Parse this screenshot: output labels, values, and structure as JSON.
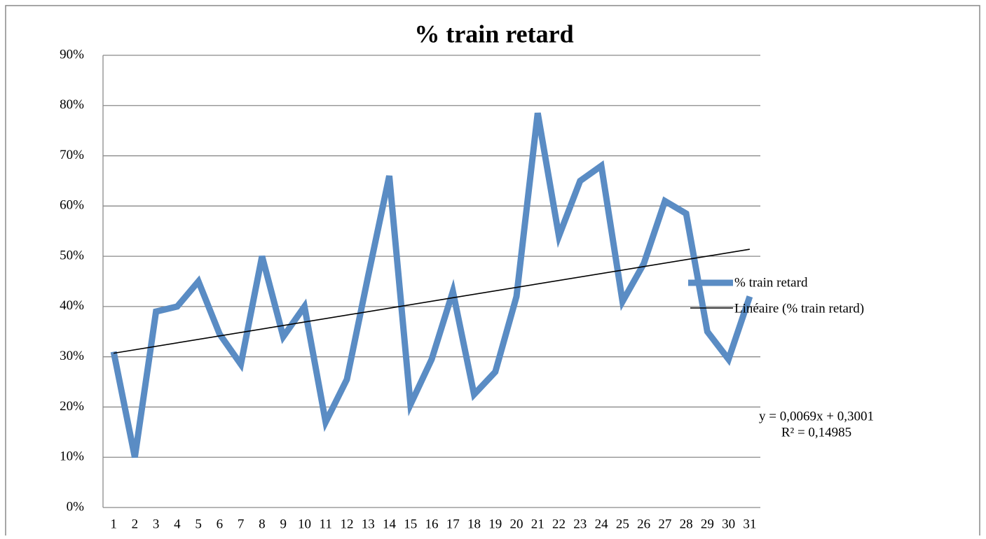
{
  "chart_data": {
    "type": "line",
    "title": "% train retard",
    "categories": [
      "1",
      "2",
      "3",
      "4",
      "5",
      "6",
      "7",
      "8",
      "9",
      "10",
      "11",
      "12",
      "13",
      "14",
      "15",
      "16",
      "17",
      "18",
      "19",
      "20",
      "21",
      "22",
      "23",
      "24",
      "25",
      "26",
      "27",
      "28",
      "29",
      "30",
      "31"
    ],
    "series": [
      {
        "name": "% train retard",
        "color": "#5a8cc4",
        "values": [
          31,
          10,
          39,
          40,
          45,
          34.5,
          28.5,
          50,
          34,
          40,
          17,
          25.5,
          46,
          66,
          20.5,
          29.5,
          43,
          22.5,
          27,
          42,
          78.5,
          54,
          65,
          68,
          41,
          48.5,
          61,
          58.5,
          35,
          29.5,
          42
        ]
      }
    ],
    "trendline": {
      "name": "Linéaire (% train retard)",
      "color": "#000000",
      "slope": 0.69,
      "intercept": 30.01,
      "equation": "y = 0,0069x + 0,3001",
      "r2": "R² = 0,14985"
    },
    "ylim": [
      0,
      90
    ],
    "yticks": [
      {
        "value": 0,
        "label": "0%"
      },
      {
        "value": 10,
        "label": "10%"
      },
      {
        "value": 20,
        "label": "20%"
      },
      {
        "value": 30,
        "label": "30%"
      },
      {
        "value": 40,
        "label": "40%"
      },
      {
        "value": 50,
        "label": "50%"
      },
      {
        "value": 60,
        "label": "60%"
      },
      {
        "value": 70,
        "label": "70%"
      },
      {
        "value": 80,
        "label": "80%"
      },
      {
        "value": 90,
        "label": "90%"
      }
    ],
    "grid": true,
    "legend": "right"
  }
}
